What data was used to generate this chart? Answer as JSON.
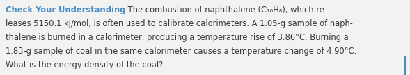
{
  "heading": "Check Your Understanding",
  "heading_color": "#4a90c8",
  "body_color": "#3a3a3a",
  "background_color": "#f2f2f0",
  "font_size": 8.3,
  "line1_body": " The combustion of naphthalene (C₁₀H₈), which re-",
  "line2": "leases 5150.1 kJ/mol, is often used to calibrate calorimeters. A 1.05-g sample of naph-",
  "line3": "thalene is burned in a calorimeter, producing a temperature rise of 3.86°C. Burning a",
  "line4": "1.83-g sample of coal in the same calorimeter causes a temperature change of 4.90°C.",
  "line5": "What is the energy density of the coal?",
  "cursor_color": "#4a90c8"
}
